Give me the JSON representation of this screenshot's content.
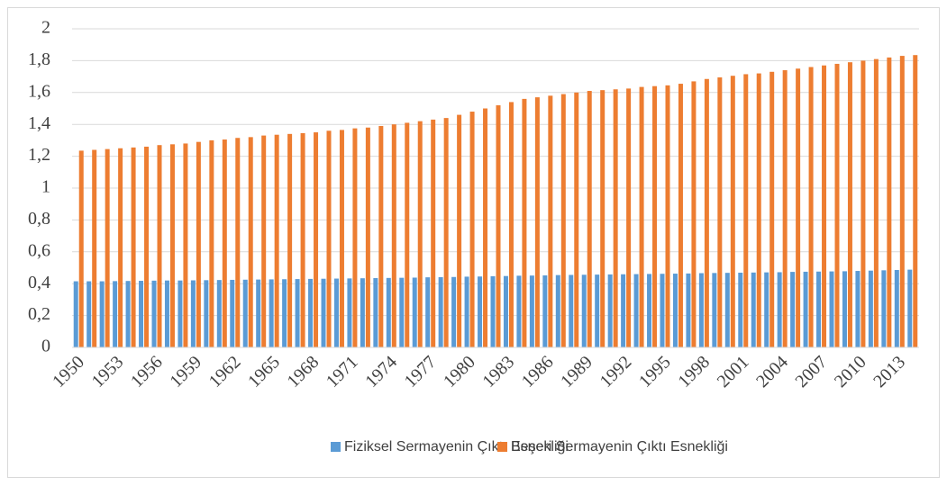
{
  "chart_data": {
    "type": "bar",
    "categories": [
      "1950",
      null,
      null,
      "1953",
      null,
      null,
      "1956",
      null,
      null,
      "1959",
      null,
      null,
      "1962",
      null,
      null,
      "1965",
      null,
      null,
      "1968",
      null,
      null,
      "1971",
      null,
      null,
      "1974",
      null,
      null,
      "1977",
      null,
      null,
      "1980",
      null,
      null,
      "1983",
      null,
      null,
      "1986",
      null,
      null,
      "1989",
      null,
      null,
      "1992",
      null,
      null,
      "1995",
      null,
      null,
      "1998",
      null,
      null,
      "2001",
      null,
      null,
      "2004",
      null,
      null,
      "2007",
      null,
      null,
      "2010",
      null,
      null,
      "2013",
      null
    ],
    "series": [
      {
        "name": "Fiziksel Sermayenin Çıktı Esnekliği",
        "color": "#5b9bd5",
        "values": [
          0.415,
          0.415,
          0.415,
          0.416,
          0.417,
          0.418,
          0.419,
          0.42,
          0.42,
          0.421,
          0.422,
          0.423,
          0.424,
          0.425,
          0.426,
          0.427,
          0.428,
          0.429,
          0.43,
          0.431,
          0.432,
          0.433,
          0.434,
          0.435,
          0.436,
          0.437,
          0.438,
          0.44,
          0.441,
          0.442,
          0.444,
          0.445,
          0.447,
          0.448,
          0.45,
          0.451,
          0.452,
          0.454,
          0.455,
          0.456,
          0.457,
          0.458,
          0.459,
          0.46,
          0.461,
          0.462,
          0.463,
          0.464,
          0.466,
          0.467,
          0.468,
          0.469,
          0.47,
          0.471,
          0.472,
          0.474,
          0.475,
          0.476,
          0.477,
          0.478,
          0.48,
          0.482,
          0.484,
          0.486,
          0.488
        ]
      },
      {
        "name": "Beşeri Sermayenin Çıktı Esnekliği",
        "color": "#ed7d31",
        "values": [
          1.235,
          1.24,
          1.245,
          1.25,
          1.255,
          1.26,
          1.27,
          1.275,
          1.28,
          1.29,
          1.3,
          1.305,
          1.315,
          1.32,
          1.33,
          1.335,
          1.34,
          1.345,
          1.35,
          1.36,
          1.365,
          1.375,
          1.38,
          1.39,
          1.4,
          1.41,
          1.42,
          1.43,
          1.44,
          1.46,
          1.48,
          1.5,
          1.52,
          1.54,
          1.56,
          1.57,
          1.58,
          1.59,
          1.6,
          1.61,
          1.615,
          1.62,
          1.625,
          1.635,
          1.64,
          1.645,
          1.655,
          1.67,
          1.685,
          1.695,
          1.705,
          1.715,
          1.72,
          1.73,
          1.74,
          1.75,
          1.76,
          1.77,
          1.78,
          1.79,
          1.8,
          1.81,
          1.82,
          1.83,
          1.835
        ]
      }
    ],
    "ylim": [
      0,
      2
    ],
    "yticks": [
      0,
      {
        "value": 0.2,
        "label": "0,2"
      },
      {
        "value": 0.4,
        "label": "0,4"
      },
      {
        "value": 0.6,
        "label": "0,6"
      },
      {
        "value": 0.8,
        "label": "0,8"
      },
      1,
      {
        "value": 1.2,
        "label": "1,2"
      },
      {
        "value": 1.4,
        "label": "1,4"
      },
      {
        "value": 1.6,
        "label": "1,6"
      },
      {
        "value": 1.8,
        "label": "1,8"
      },
      2
    ],
    "grid": true,
    "legend": "bottom"
  }
}
